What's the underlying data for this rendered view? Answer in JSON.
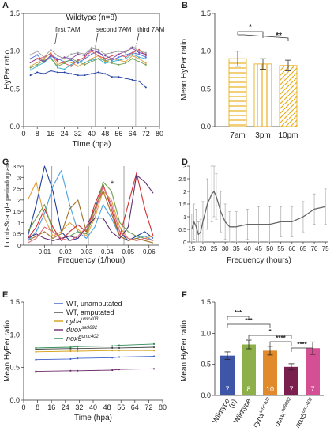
{
  "panels": {
    "A": {
      "letter": "A",
      "title": "Wildtype (n=8)",
      "xlabel": "TIme (hpa)",
      "ylabel": "HyPer ratio",
      "xticks": [
        0,
        8,
        16,
        24,
        32,
        40,
        48,
        56,
        64,
        72,
        80
      ],
      "yticks": [
        "0.0",
        "0.5",
        "1.0",
        "1.5"
      ],
      "annotations": [
        "first 7AM",
        "second 7AM",
        "third 7AM"
      ]
    },
    "B": {
      "letter": "B",
      "ylabel": "Mean HyPer ratio",
      "yticks": [
        "0.0",
        "0.5",
        "1.0",
        "1.5"
      ],
      "sig": [
        "*",
        "**"
      ]
    },
    "C": {
      "letter": "C",
      "xlabel": "Frequency (1/hour)",
      "ylabel": "Lomb-Scargle periodogram",
      "xticks": [
        "0.01",
        "0.02",
        "0.03",
        "0.04",
        "0.05",
        "0.06"
      ],
      "yticks": [
        "0",
        "0.5",
        "1",
        "1.5",
        "2",
        "2.5",
        "3",
        "3.5"
      ],
      "sig": "*"
    },
    "D": {
      "letter": "D",
      "xlabel": "Frequency (hours)",
      "xticks": [
        15,
        20,
        25,
        30,
        35,
        40,
        45,
        50,
        55,
        60,
        65,
        70,
        75
      ],
      "yticks": [
        "0",
        "0.5",
        "1",
        "1.5",
        "2",
        "2.5",
        "3"
      ]
    },
    "E": {
      "letter": "E",
      "xlabel": "Time (hpa)",
      "ylabel": "Mean HyPer ratio",
      "xticks": [
        0,
        8,
        16,
        24,
        32,
        40,
        48,
        56,
        64,
        72,
        80
      ],
      "yticks": [
        "0.0",
        "0.5",
        "1.0",
        "1.5"
      ],
      "legend": [
        {
          "base": "WT, unamputated",
          "sup": "",
          "italic": false,
          "color": "#3a5fcd"
        },
        {
          "base": "WT, amputated",
          "sup": "",
          "italic": false,
          "color": "#444444"
        },
        {
          "base": "cyba",
          "sup": "umc403",
          "italic": true,
          "color": "#d4a017"
        },
        {
          "base": "duox",
          "sup": "sa9892",
          "italic": true,
          "color": "#6b2c6b"
        },
        {
          "base": "nox5",
          "sup": "umc402",
          "italic": true,
          "color": "#2e8b57"
        }
      ]
    },
    "F": {
      "letter": "F",
      "ylabel": "Mean HyPer ratio",
      "yticks": [
        "0.0",
        "0.5",
        "1.0",
        "1.5"
      ],
      "sig": [
        "***",
        "***",
        "*",
        "****",
        "****"
      ],
      "bar_labels": [
        {
          "base": "Wildtype",
          "sub": "(u)",
          "sup": "",
          "italic": false
        },
        {
          "base": "Wildtype",
          "sub": "",
          "sup": "",
          "italic": false
        },
        {
          "base": "cyba",
          "sub": "",
          "sup": "umc403",
          "italic": true
        },
        {
          "base": "duox",
          "sub": "",
          "sup": "sa9892",
          "italic": true
        },
        {
          "base": "nox5",
          "sub": "",
          "sup": "umc402",
          "italic": true
        }
      ]
    }
  },
  "chart_data": [
    {
      "panel": "A",
      "type": "line",
      "title": "Wildtype (n=8)",
      "xlabel": "TIme (hpa)",
      "ylabel": "HyPer ratio",
      "xlim": [
        0,
        80
      ],
      "ylim": [
        0,
        1.5
      ],
      "x": [
        4,
        8,
        12,
        16,
        20,
        24,
        28,
        32,
        36,
        40,
        44,
        48,
        52,
        56,
        60,
        64,
        68,
        72
      ],
      "series": [
        {
          "color": "#1f3f9f",
          "values": [
            0.68,
            0.72,
            0.7,
            0.74,
            0.72,
            0.72,
            0.7,
            0.68,
            0.68,
            0.7,
            0.72,
            0.7,
            0.66,
            0.66,
            0.64,
            0.62,
            0.6,
            0.52
          ]
        },
        {
          "color": "#4a6fe0",
          "values": [
            0.9,
            0.95,
            0.85,
            0.95,
            0.9,
            0.86,
            0.88,
            0.84,
            0.9,
            0.96,
            1.0,
            0.9,
            0.88,
            0.92,
            0.95,
            0.98,
            0.96,
            0.92
          ]
        },
        {
          "color": "#e0a040",
          "values": [
            0.8,
            0.85,
            0.9,
            0.98,
            0.82,
            0.86,
            0.85,
            0.8,
            0.84,
            0.9,
            0.94,
            0.86,
            0.9,
            0.88,
            0.86,
            0.94,
            0.9,
            0.84
          ]
        },
        {
          "color": "#40b0d0",
          "values": [
            0.75,
            0.8,
            0.85,
            0.92,
            0.78,
            0.76,
            0.82,
            0.88,
            0.85,
            0.88,
            0.9,
            0.84,
            0.86,
            0.88,
            0.9,
            0.96,
            0.92,
            0.9
          ]
        },
        {
          "color": "#e05050",
          "values": [
            0.85,
            0.9,
            0.92,
            0.97,
            0.86,
            0.84,
            0.8,
            0.88,
            0.92,
            1.0,
            0.94,
            0.9,
            0.94,
            0.96,
            0.92,
            0.98,
            1.02,
            0.94
          ]
        },
        {
          "color": "#70a050",
          "values": [
            0.78,
            0.82,
            0.88,
            0.9,
            0.8,
            0.84,
            0.9,
            0.86,
            0.82,
            0.86,
            0.9,
            0.88,
            0.84,
            0.82,
            0.84,
            0.9,
            0.86,
            0.82
          ]
        },
        {
          "color": "#8040a0",
          "values": [
            0.85,
            0.9,
            0.86,
            0.94,
            0.88,
            0.92,
            0.9,
            0.96,
            0.94,
            1.02,
            0.98,
            0.94,
            0.9,
            0.96,
            1.0,
            1.04,
            0.98,
            0.96
          ]
        },
        {
          "color": "#9a9a9a",
          "values": [
            0.95,
            1.0,
            0.92,
            1.02,
            0.94,
            0.9,
            0.96,
            0.98,
            0.96,
            1.04,
            1.02,
            0.96,
            0.98,
            1.0,
            0.98,
            1.06,
            1.0,
            0.98
          ]
        }
      ],
      "vlines": [
        18,
        42,
        66
      ]
    },
    {
      "panel": "B",
      "type": "bar",
      "ylabel": "Mean HyPer ratio",
      "ylim": [
        0,
        1.5
      ],
      "categories": [
        "7am",
        "3pm",
        "10pm"
      ],
      "values": [
        0.9,
        0.83,
        0.81
      ],
      "errors": [
        0.1,
        0.07,
        0.07
      ],
      "color": "#e8b020"
    },
    {
      "panel": "C",
      "type": "line",
      "xlabel": "Frequency (1/hour)",
      "ylabel": "Lomb-Scargle periodogram",
      "xlim": [
        0,
        0.065
      ],
      "ylim": [
        0,
        3.5
      ],
      "x": [
        0.002,
        0.006,
        0.01,
        0.014,
        0.018,
        0.022,
        0.026,
        0.03,
        0.034,
        0.038,
        0.042,
        0.046,
        0.05,
        0.054,
        0.058,
        0.062
      ],
      "series": [
        {
          "color": "#1f3f9f",
          "values": [
            0.4,
            1.8,
            3.5,
            2.4,
            0.6,
            0.2,
            0.3,
            0.8,
            1.6,
            2.6,
            1.8,
            0.6,
            0.2,
            0.4,
            0.6,
            0.3
          ]
        },
        {
          "color": "#4aa0e0",
          "values": [
            0.2,
            0.6,
            1.4,
            2.6,
            3.3,
            1.8,
            0.6,
            0.3,
            0.8,
            1.8,
            1.2,
            0.4,
            0.2,
            0.3,
            0.4,
            0.2
          ]
        },
        {
          "color": "#e0a040",
          "values": [
            2.0,
            2.8,
            1.2,
            0.4,
            0.6,
            1.0,
            0.7,
            0.4,
            1.2,
            2.4,
            2.0,
            0.8,
            0.3,
            0.2,
            0.3,
            0.4
          ]
        },
        {
          "color": "#d03030",
          "values": [
            0.3,
            0.8,
            1.6,
            0.8,
            0.2,
            0.6,
            0.9,
            0.6,
            1.8,
            2.7,
            1.6,
            0.4,
            1.8,
            3.2,
            1.6,
            0.4
          ]
        },
        {
          "color": "#70a050",
          "values": [
            0.6,
            1.2,
            1.8,
            0.6,
            0.3,
            0.4,
            0.6,
            0.5,
            1.4,
            2.8,
            2.4,
            1.0,
            0.6,
            0.4,
            0.3,
            0.2
          ]
        },
        {
          "color": "#a07020",
          "values": [
            0.2,
            0.4,
            0.6,
            0.3,
            0.5,
            1.6,
            2.0,
            0.6,
            1.6,
            2.4,
            1.4,
            0.4,
            0.2,
            0.3,
            0.2,
            0.1
          ]
        },
        {
          "color": "#603070",
          "values": [
            0.3,
            0.5,
            0.3,
            0.2,
            0.3,
            0.4,
            0.3,
            0.8,
            1.2,
            1.2,
            0.6,
            0.3,
            0.8,
            3.1,
            2.8,
            2.3
          ]
        },
        {
          "color": "#e07080",
          "values": [
            0.1,
            0.3,
            0.8,
            0.6,
            0.3,
            0.2,
            0.4,
            0.8,
            1.4,
            2.6,
            1.8,
            0.6,
            0.3,
            0.2,
            0.3,
            0.2
          ]
        }
      ],
      "vlines": [
        0.0135,
        0.031,
        0.048
      ]
    },
    {
      "panel": "D",
      "type": "line",
      "xlabel": "Frequency (hours)",
      "xlim": [
        14,
        76
      ],
      "ylim": [
        0,
        3
      ],
      "x": [
        15,
        16,
        17,
        18,
        19,
        20,
        22,
        24,
        25,
        26,
        28,
        30,
        32,
        35,
        40,
        45,
        50,
        55,
        60,
        65,
        70,
        75
      ],
      "values": [
        0.5,
        0.8,
        0.6,
        0.3,
        0.4,
        0.8,
        1.5,
        1.9,
        2.0,
        1.8,
        1.2,
        0.8,
        0.6,
        0.6,
        0.7,
        0.7,
        0.7,
        0.8,
        0.8,
        1.0,
        1.3,
        1.4
      ],
      "errors": [
        0.6,
        0.7,
        0.7,
        0.5,
        0.5,
        0.8,
        1.0,
        1.1,
        1.0,
        0.9,
        0.8,
        0.7,
        0.6,
        0.6,
        0.6,
        0.7,
        0.7,
        0.6,
        0.6,
        0.6,
        0.6,
        0.7
      ],
      "color": "#666666"
    },
    {
      "panel": "E",
      "type": "line",
      "xlabel": "Time (hpa)",
      "ylabel": "Mean HyPer ratio",
      "xlim": [
        0,
        80
      ],
      "ylim": [
        0,
        1.5
      ],
      "x": [
        7,
        27,
        31,
        51,
        55,
        75
      ],
      "series": [
        {
          "name": "WT, unamputated",
          "color": "#3a5fcd",
          "values": [
            0.62,
            0.63,
            0.64,
            0.65,
            0.66,
            0.67
          ]
        },
        {
          "name": "WT, amputated",
          "color": "#444444",
          "values": [
            0.78,
            0.79,
            0.79,
            0.8,
            0.8,
            0.81
          ]
        },
        {
          "name": "cyba umc403",
          "color": "#d4a017",
          "values": [
            0.74,
            0.75,
            0.75,
            0.76,
            0.76,
            0.76
          ]
        },
        {
          "name": "duox sa9892",
          "color": "#6b2c6b",
          "values": [
            0.44,
            0.45,
            0.45,
            0.46,
            0.47,
            0.48
          ]
        },
        {
          "name": "nox5 umc402",
          "color": "#2e8b57",
          "values": [
            0.8,
            0.81,
            0.82,
            0.83,
            0.84,
            0.86
          ]
        }
      ]
    },
    {
      "panel": "F",
      "type": "bar",
      "ylabel": "Mean HyPer ratio",
      "ylim": [
        0,
        1.5
      ],
      "categories": [
        "Wildtype (u)",
        "Wildtype",
        "cyba umc403",
        "duox sa9892",
        "nox5 umc402"
      ],
      "values": [
        0.64,
        0.82,
        0.72,
        0.46,
        0.76
      ],
      "errors": [
        0.06,
        0.07,
        0.07,
        0.05,
        0.1
      ],
      "n": [
        "7",
        "8",
        "10",
        "7",
        "7"
      ],
      "colors": [
        "#3e55a8",
        "#8db04a",
        "#e08a2c",
        "#7a1f4e",
        "#d44f93"
      ]
    }
  ]
}
